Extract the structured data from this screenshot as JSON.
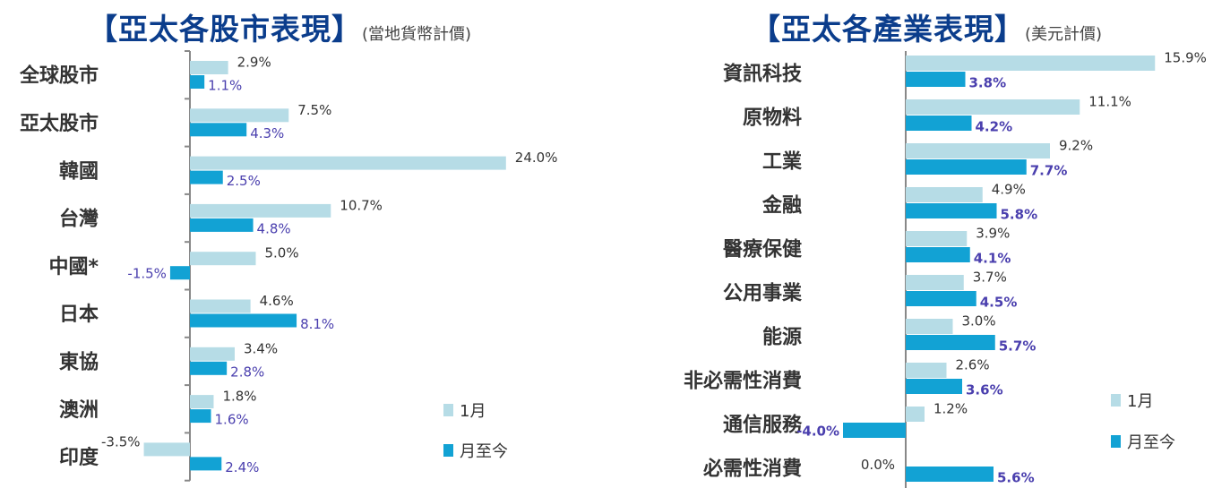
{
  "chart_data": [
    {
      "type": "bar",
      "orientation": "horizontal",
      "title": "【亞太各股市表現】",
      "subtitle": "(當地貨幣計價)",
      "categories": [
        "全球股市",
        "亞太股市",
        "韓國",
        "台灣",
        "中國*",
        "日本",
        "東協",
        "澳洲",
        "印度"
      ],
      "series": [
        {
          "name": "1月",
          "color": "#b6dce6",
          "values": [
            2.9,
            7.5,
            24.0,
            10.7,
            5.0,
            4.6,
            3.4,
            1.8,
            -3.5
          ],
          "labels": [
            "2.9%",
            "7.5%",
            "24.0%",
            "10.7%",
            "5.0%",
            "4.6%",
            "3.4%",
            "1.8%",
            "-3.5%"
          ]
        },
        {
          "name": "月至今",
          "color": "#12a2d4",
          "values": [
            1.1,
            4.3,
            2.5,
            4.8,
            -1.5,
            8.1,
            2.8,
            1.6,
            2.4
          ],
          "labels": [
            "1.1%",
            "4.3%",
            "2.5%",
            "4.8%",
            "-1.5%",
            "8.1%",
            "2.8%",
            "1.6%",
            "2.4%"
          ]
        }
      ],
      "unit": "%",
      "legend": "bottom-right",
      "grid": false
    },
    {
      "type": "bar",
      "orientation": "horizontal",
      "title": "【亞太各產業表現】",
      "subtitle": "(美元計價)",
      "categories": [
        "資訊科技",
        "原物料",
        "工業",
        "金融",
        "醫療保健",
        "公用事業",
        "能源",
        "非必需性消費",
        "通信服務",
        "必需性消費"
      ],
      "series": [
        {
          "name": "1月",
          "color": "#b6dce6",
          "values": [
            15.9,
            11.1,
            9.2,
            4.9,
            3.9,
            3.7,
            3.0,
            2.6,
            1.2,
            0.0
          ],
          "labels": [
            "15.9%",
            "11.1%",
            "9.2%",
            "4.9%",
            "3.9%",
            "3.7%",
            "3.0%",
            "2.6%",
            "1.2%",
            "0.0%"
          ]
        },
        {
          "name": "月至今",
          "color": "#12a2d4",
          "values": [
            3.8,
            4.2,
            7.7,
            5.8,
            4.1,
            4.5,
            5.7,
            3.6,
            -4.0,
            5.6
          ],
          "labels": [
            "3.8%",
            "4.2%",
            "7.7%",
            "5.8%",
            "4.1%",
            "4.5%",
            "5.7%",
            "3.6%",
            "-4.0%",
            "5.6%"
          ]
        }
      ],
      "unit": "%",
      "legend": "bottom-right",
      "grid": false
    }
  ]
}
